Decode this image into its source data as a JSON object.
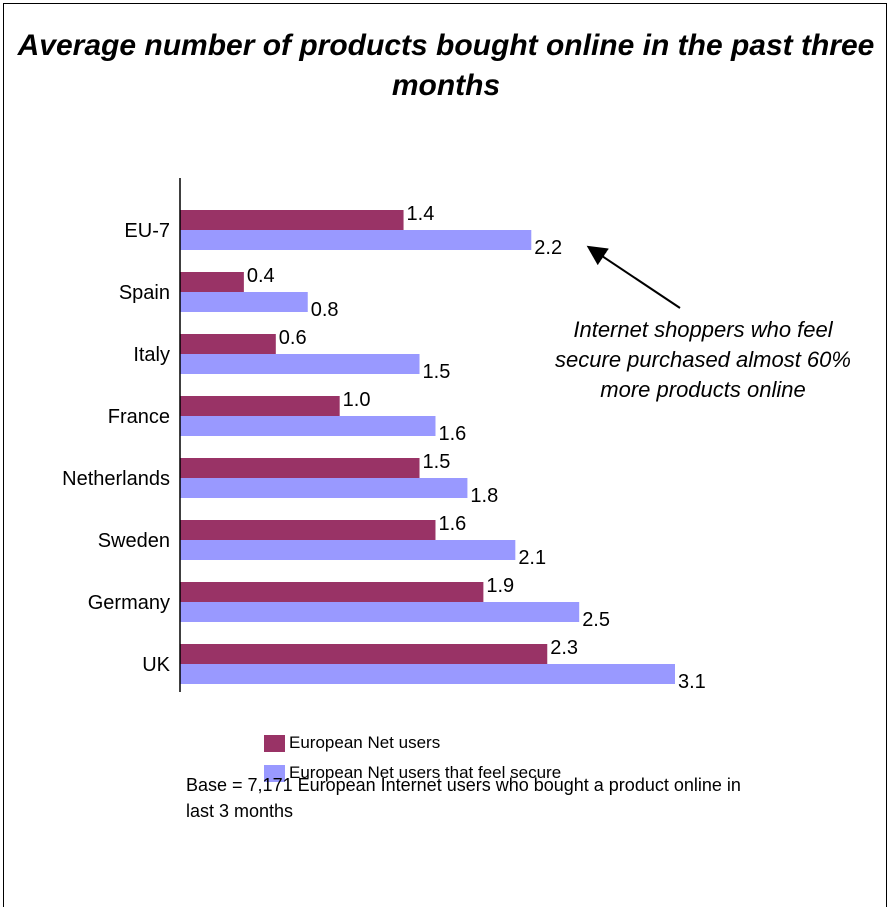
{
  "chart_data": {
    "type": "bar",
    "orientation": "horizontal",
    "title": "Average number of products bought online in the past three months",
    "categories": [
      "EU-7",
      "Spain",
      "Italy",
      "France",
      "Netherlands",
      "Sweden",
      "Germany",
      "UK"
    ],
    "series": [
      {
        "name": "European Net users",
        "color": "#993366",
        "values": [
          1.4,
          0.4,
          0.6,
          1.0,
          1.5,
          1.6,
          1.9,
          2.3
        ]
      },
      {
        "name": "European Net users that feel secure",
        "color": "#9999ff",
        "values": [
          2.2,
          0.8,
          1.5,
          1.6,
          1.8,
          2.1,
          2.5,
          3.1
        ]
      }
    ],
    "value_labels": [
      [
        "1.4",
        "0.4",
        "0.6",
        "1.0",
        "1.5",
        "1.6",
        "1.9",
        "2.3"
      ],
      [
        "2.2",
        "0.8",
        "1.5",
        "1.6",
        "1.8",
        "2.1",
        "2.5",
        "3.1"
      ]
    ],
    "xlim": [
      0,
      3.2
    ],
    "grid": false,
    "legend_position": "bottom",
    "annotation": "Internet shoppers who feel secure purchased almost 60% more products online",
    "footnote": "Base = 7,171 European Internet users who bought a product online in last 3 months"
  }
}
